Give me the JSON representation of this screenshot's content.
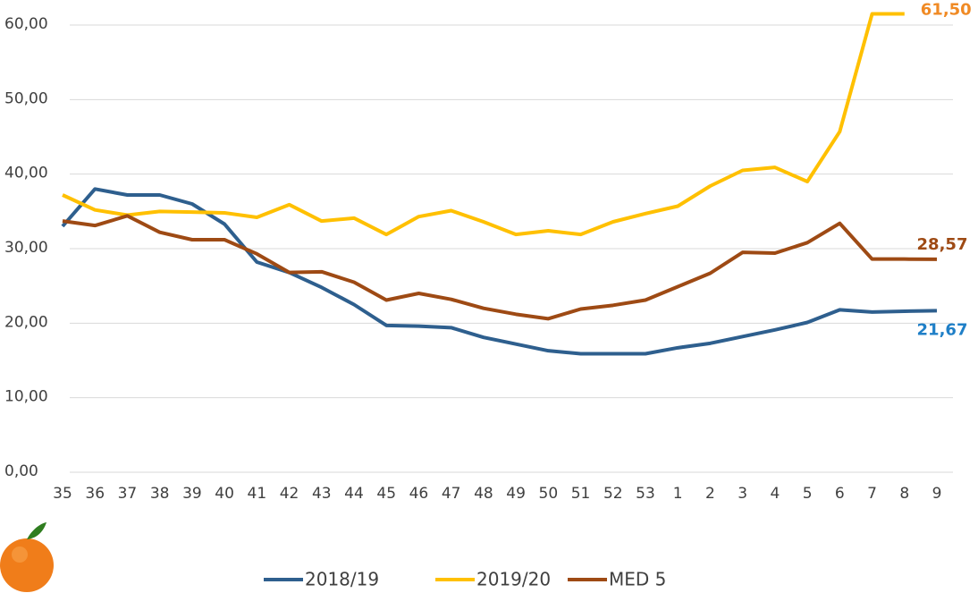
{
  "chart_data": {
    "type": "line",
    "categories": [
      "35",
      "36",
      "37",
      "38",
      "39",
      "40",
      "41",
      "42",
      "43",
      "44",
      "45",
      "46",
      "47",
      "48",
      "49",
      "50",
      "51",
      "52",
      "53",
      "1",
      "2",
      "3",
      "4",
      "5",
      "6",
      "7",
      "8",
      "9"
    ],
    "ylim": [
      0,
      60
    ],
    "yticks": [
      {
        "value": 0,
        "label": "0,00"
      },
      {
        "value": 10,
        "label": "10,00"
      },
      {
        "value": 20,
        "label": "20,00"
      },
      {
        "value": 30,
        "label": "30,00"
      },
      {
        "value": 40,
        "label": "40,00"
      },
      {
        "value": 50,
        "label": "50,00"
      },
      {
        "value": 60,
        "label": "60,00"
      }
    ],
    "grid": true,
    "legend": "bottom",
    "series": [
      {
        "name": "2018/19",
        "color": "#2e5f8e",
        "label_color": "#1f7fc7",
        "values": [
          33,
          38,
          37.2,
          37.2,
          36,
          33.3,
          28.2,
          26.8,
          24.8,
          22.5,
          19.7,
          19.6,
          19.4,
          18.1,
          17.2,
          16.3,
          15.9,
          15.9,
          15.9,
          16.7,
          17.3,
          18.2,
          19.1,
          20.1,
          21.8,
          21.5,
          21.6,
          21.67
        ],
        "value_labels": [
          null,
          null,
          null,
          null,
          null,
          null,
          null,
          null,
          null,
          null,
          null,
          null,
          null,
          null,
          null,
          null,
          null,
          null,
          null,
          null,
          null,
          null,
          null,
          null,
          null,
          null,
          null,
          "21,67"
        ]
      },
      {
        "name": "2019/20",
        "color": "#ffc000",
        "label_color": "#f08a24",
        "values": [
          37.2,
          35.2,
          34.5,
          35,
          34.9,
          34.8,
          34.2,
          35.9,
          33.7,
          34.1,
          31.9,
          34.3,
          35.1,
          33.6,
          31.9,
          32.4,
          31.9,
          33.6,
          34.7,
          35.7,
          38.4,
          40.5,
          40.9,
          39,
          45.7,
          61.5,
          61.5,
          null
        ],
        "value_labels": [
          null,
          null,
          null,
          null,
          null,
          null,
          null,
          null,
          null,
          null,
          null,
          null,
          null,
          null,
          null,
          null,
          null,
          null,
          null,
          null,
          null,
          null,
          null,
          null,
          null,
          null,
          "61,50",
          null
        ]
      },
      {
        "name": "MED 5",
        "color": "#9e4a14",
        "label_color": "#9e4a14",
        "values": [
          33.7,
          33.1,
          34.4,
          32.2,
          31.2,
          31.2,
          29.3,
          26.8,
          26.9,
          25.5,
          23.1,
          24,
          23.2,
          22,
          21.2,
          20.6,
          21.9,
          22.4,
          23.1,
          24.9,
          26.7,
          29.5,
          29.4,
          30.8,
          33.4,
          28.6,
          28.6,
          28.57
        ],
        "value_labels": [
          null,
          null,
          null,
          null,
          null,
          null,
          null,
          null,
          null,
          null,
          null,
          null,
          null,
          null,
          null,
          null,
          null,
          null,
          null,
          null,
          null,
          null,
          null,
          null,
          null,
          null,
          null,
          "28,57"
        ]
      }
    ]
  }
}
